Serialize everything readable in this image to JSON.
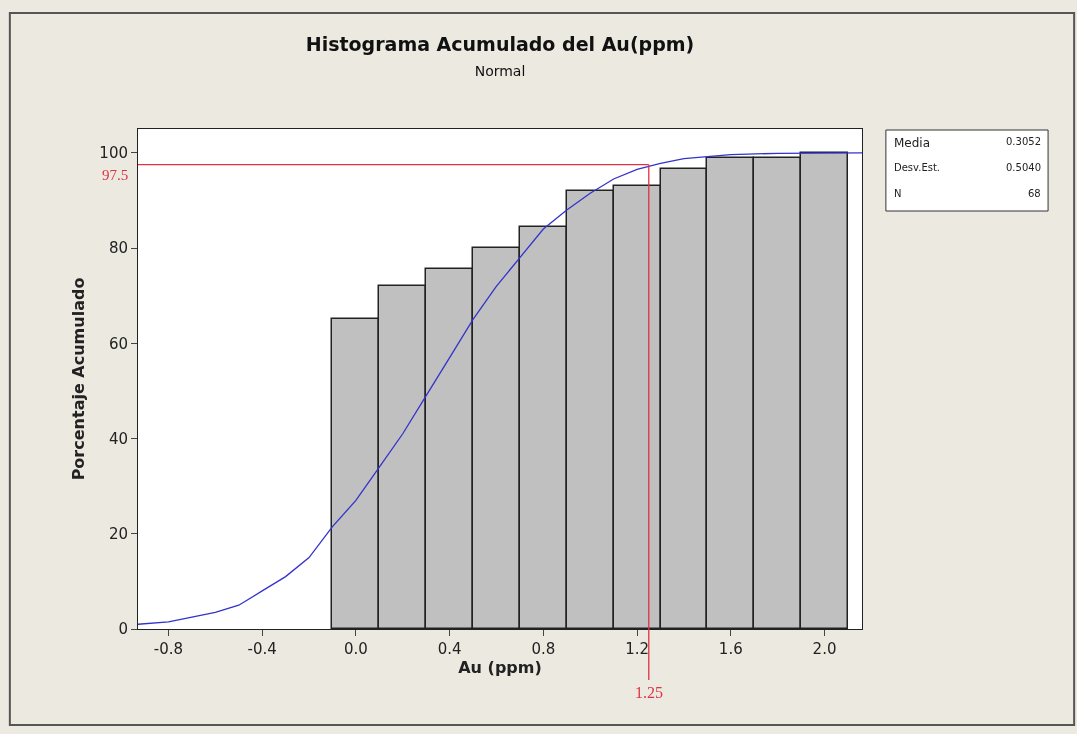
{
  "chart_data": {
    "type": "histogram",
    "title": "Histograma Acumulado del Au(ppm)",
    "subtitle": "Normal",
    "xlabel": "Au (ppm)",
    "ylabel": "Porcentaje Acumulado",
    "bins": [
      -0.1,
      0.1,
      0.3,
      0.5,
      0.7,
      0.9,
      1.1,
      1.3,
      1.5,
      1.7,
      1.9,
      2.1
    ],
    "values": [
      65,
      72,
      75.5,
      80,
      84.5,
      92,
      93,
      96.5,
      99,
      99,
      100
    ],
    "color": "#c0c0c0",
    "series": [
      {
        "type": "line",
        "color": "#3333cc",
        "x": [
          -0.93,
          -0.8,
          -0.7,
          -0.6,
          -0.5,
          -0.4,
          -0.3,
          -0.2,
          -0.1,
          0.0,
          0.1,
          0.2,
          0.3,
          0.4,
          0.5,
          0.6,
          0.7,
          0.8,
          0.9,
          1.0,
          1.1,
          1.2,
          1.3,
          1.4,
          1.6,
          1.8,
          2.16
        ],
        "values": [
          1,
          1.5,
          2.5,
          3.5,
          5,
          8,
          11,
          15,
          21.5,
          27,
          34,
          41,
          49,
          57,
          65,
          72,
          78,
          84,
          88,
          91.5,
          94.5,
          96.5,
          97.8,
          98.8,
          99.6,
          99.9,
          100
        ]
      }
    ],
    "xlim": [
      -0.93,
      2.16
    ],
    "xticks": [
      -0.8,
      -0.4,
      {
        "value": 0,
        "label": "0.0"
      },
      0.4,
      0.8,
      1.2,
      1.6,
      {
        "value": 2,
        "label": "2.0"
      }
    ],
    "ylim": [
      0,
      105
    ],
    "yticks": [
      0,
      20,
      40,
      60,
      80,
      100
    ],
    "ref_lines": [
      {
        "axis": "y",
        "value": 97.5,
        "label": "97.5",
        "color": "#dd3344"
      },
      {
        "axis": "x",
        "value": 1.25,
        "label": "1.25",
        "color": "#dd3344"
      }
    ],
    "annotations": [
      "Media",
      "0.3052",
      "Desv.Est.",
      "0.5040",
      "N",
      "68"
    ]
  }
}
